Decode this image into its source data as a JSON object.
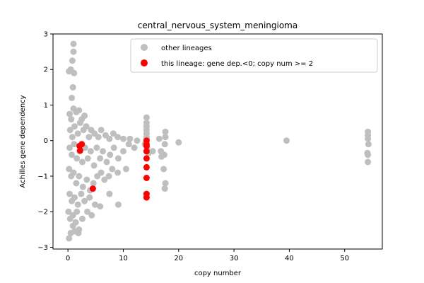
{
  "chart_data": {
    "type": "scatter",
    "title": "central_nervous_system_meningioma",
    "xlabel": "copy number",
    "ylabel": "Achilles gene dependency",
    "xlim": [
      -2.7,
      56.8
    ],
    "ylim": [
      -3.05,
      3.0
    ],
    "xticks": [
      0,
      10,
      20,
      30,
      40,
      50
    ],
    "yticks": [
      -3,
      -2,
      -1,
      0,
      1,
      2,
      3
    ],
    "grid": false,
    "legend_position": "top-right",
    "series": [
      {
        "name": "other lineages",
        "color": "#bfbfbf",
        "points": [
          [
            0.2,
            1.95
          ],
          [
            0.5,
            2.0
          ],
          [
            0.8,
            2.25
          ],
          [
            1.0,
            2.72
          ],
          [
            1.0,
            2.5
          ],
          [
            1.1,
            1.9
          ],
          [
            0.9,
            1.5
          ],
          [
            0.7,
            1.2
          ],
          [
            0.3,
            0.75
          ],
          [
            0.6,
            0.6
          ],
          [
            1.0,
            0.9
          ],
          [
            1.5,
            0.8
          ],
          [
            2.0,
            0.85
          ],
          [
            2.5,
            0.6
          ],
          [
            3.0,
            0.7
          ],
          [
            0.4,
            0.3
          ],
          [
            0.8,
            0.1
          ],
          [
            1.2,
            0.4
          ],
          [
            1.8,
            0.2
          ],
          [
            2.2,
            0.5
          ],
          [
            2.8,
            0.3
          ],
          [
            3.3,
            0.4
          ],
          [
            3.8,
            0.1
          ],
          [
            4.2,
            0.3
          ],
          [
            4.8,
            0.2
          ],
          [
            5.5,
            0.1
          ],
          [
            6.0,
            0.3
          ],
          [
            6.8,
            0.15
          ],
          [
            7.5,
            0.05
          ],
          [
            8.2,
            0.2
          ],
          [
            9.0,
            0.1
          ],
          [
            10.0,
            0.05
          ],
          [
            11.2,
            0.05
          ],
          [
            0.3,
            -0.2
          ],
          [
            0.7,
            -0.4
          ],
          [
            1.1,
            -0.1
          ],
          [
            1.6,
            -0.5
          ],
          [
            2.1,
            -0.3
          ],
          [
            2.6,
            -0.6
          ],
          [
            3.1,
            -0.2
          ],
          [
            3.6,
            -0.5
          ],
          [
            4.1,
            -0.3
          ],
          [
            4.7,
            -0.7
          ],
          [
            5.2,
            -0.2
          ],
          [
            5.8,
            -0.5
          ],
          [
            6.3,
            -0.3
          ],
          [
            7.0,
            -0.6
          ],
          [
            7.6,
            -0.4
          ],
          [
            8.3,
            -0.2
          ],
          [
            9.1,
            -0.5
          ],
          [
            10.0,
            -0.3
          ],
          [
            11.0,
            -0.1
          ],
          [
            12.0,
            -0.2
          ],
          [
            0.2,
            -0.8
          ],
          [
            0.6,
            -1.0
          ],
          [
            1.0,
            -0.9
          ],
          [
            1.5,
            -1.2
          ],
          [
            2.0,
            -1.0
          ],
          [
            2.7,
            -1.3
          ],
          [
            3.4,
            -1.1
          ],
          [
            4.0,
            -1.4
          ],
          [
            4.6,
            -1.2
          ],
          [
            5.3,
            -1.0
          ],
          [
            6.0,
            -0.9
          ],
          [
            6.6,
            -1.1
          ],
          [
            7.4,
            -1.0
          ],
          [
            8.0,
            -0.8
          ],
          [
            9.0,
            -0.9
          ],
          [
            10.5,
            -0.8
          ],
          [
            0.3,
            -1.5
          ],
          [
            0.7,
            -1.7
          ],
          [
            1.2,
            -1.6
          ],
          [
            1.8,
            -1.8
          ],
          [
            2.4,
            -1.5
          ],
          [
            3.0,
            -1.7
          ],
          [
            3.9,
            -1.6
          ],
          [
            4.9,
            -1.8
          ],
          [
            5.8,
            -1.85
          ],
          [
            7.5,
            -1.5
          ],
          [
            9.1,
            -1.8
          ],
          [
            0.1,
            -2.0
          ],
          [
            0.4,
            -2.2
          ],
          [
            0.9,
            -2.1
          ],
          [
            1.4,
            -2.3
          ],
          [
            2.0,
            -2.5
          ],
          [
            2.6,
            -2.2
          ],
          [
            0.5,
            -2.6
          ],
          [
            1.2,
            -2.55
          ],
          [
            1.9,
            -2.6
          ],
          [
            0.2,
            -2.75
          ],
          [
            0.9,
            -2.4
          ],
          [
            1.6,
            -2.0
          ],
          [
            3.5,
            -2.0
          ],
          [
            4.3,
            -2.1
          ],
          [
            12.5,
            0.0
          ],
          [
            14.2,
            0.65
          ],
          [
            14.2,
            0.5
          ],
          [
            14.2,
            0.4
          ],
          [
            14.2,
            0.3
          ],
          [
            14.2,
            0.2
          ],
          [
            14.2,
            0.1
          ],
          [
            14.2,
            0.05
          ],
          [
            13.9,
            -0.1
          ],
          [
            14.3,
            -0.2
          ],
          [
            14.6,
            -0.35
          ],
          [
            15.3,
            -0.3
          ],
          [
            16.5,
            0.05
          ],
          [
            16.8,
            -0.3
          ],
          [
            16.9,
            -0.45
          ],
          [
            17.3,
            -0.8
          ],
          [
            17.6,
            0.25
          ],
          [
            17.6,
            0.1
          ],
          [
            17.5,
            -0.1
          ],
          [
            17.4,
            -0.4
          ],
          [
            17.6,
            -1.2
          ],
          [
            17.5,
            -1.35
          ],
          [
            20.0,
            -0.05
          ],
          [
            39.5,
            0.0
          ],
          [
            54.2,
            0.25
          ],
          [
            54.2,
            0.15
          ],
          [
            54.2,
            0.05
          ],
          [
            54.3,
            -0.1
          ],
          [
            54.1,
            -0.35
          ],
          [
            54.2,
            -0.4
          ],
          [
            54.2,
            -0.6
          ]
        ]
      },
      {
        "name": "this lineage: gene dep.<0; copy num >= 2",
        "color": "#ff0000",
        "points": [
          [
            2.1,
            -0.15
          ],
          [
            2.5,
            -0.1
          ],
          [
            2.2,
            -0.28
          ],
          [
            4.5,
            -1.35
          ],
          [
            14.2,
            0.0
          ],
          [
            14.2,
            -0.1
          ],
          [
            14.2,
            -0.15
          ],
          [
            14.2,
            -0.3
          ],
          [
            14.2,
            -0.5
          ],
          [
            14.2,
            -0.75
          ],
          [
            14.2,
            -1.05
          ],
          [
            14.2,
            -1.5
          ],
          [
            14.2,
            -1.6
          ]
        ]
      }
    ]
  }
}
